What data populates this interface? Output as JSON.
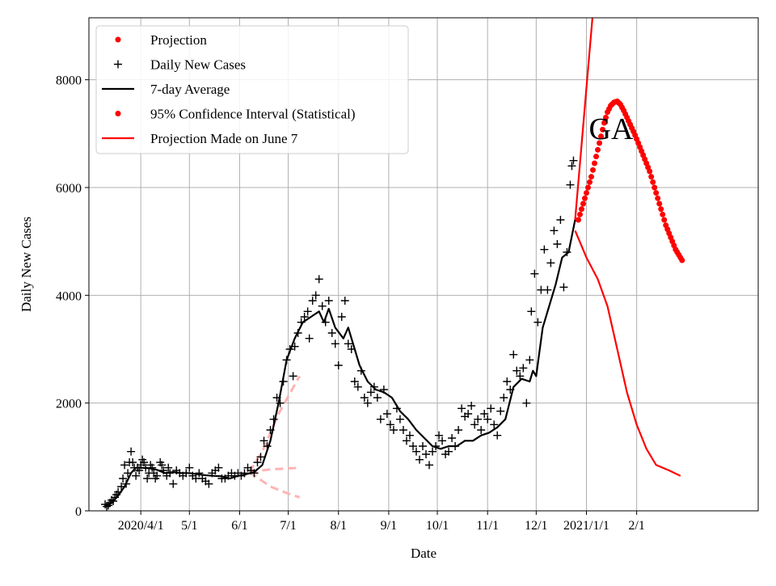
{
  "chart_data": {
    "type": "line",
    "title": "",
    "annotation": "GA",
    "xlabel": "Date",
    "ylabel": "Daily New Cases",
    "x_units": "days since 2020/4/1",
    "xlim": [
      -32,
      381
    ],
    "ylim": [
      0,
      9150
    ],
    "grid": true,
    "legend_placement": "top-left",
    "xticks": [
      {
        "day": 0,
        "label": "2020/4/1"
      },
      {
        "day": 30,
        "label": "5/1"
      },
      {
        "day": 61,
        "label": "6/1"
      },
      {
        "day": 91,
        "label": "7/1"
      },
      {
        "day": 122,
        "label": "8/1"
      },
      {
        "day": 153,
        "label": "9/1"
      },
      {
        "day": 183,
        "label": "10/1"
      },
      {
        "day": 214,
        "label": "11/1"
      },
      {
        "day": 244,
        "label": "12/1"
      },
      {
        "day": 275,
        "label": "2021/1/1"
      },
      {
        "day": 306,
        "label": "2/1"
      }
    ],
    "yticks": [
      {
        "value": 0,
        "label": "0"
      },
      {
        "value": 2000,
        "label": "2000"
      },
      {
        "value": 4000,
        "label": "4000"
      },
      {
        "value": 6000,
        "label": "6000"
      },
      {
        "value": 8000,
        "label": "8000"
      }
    ],
    "legend": [
      {
        "label": "Projection",
        "kind": "dot",
        "color": "#ff0000"
      },
      {
        "label": "Daily New Cases",
        "kind": "plus",
        "color": "#000000"
      },
      {
        "label": "7-day Average",
        "kind": "line",
        "color": "#000000"
      },
      {
        "label": "95% Confidence Interval (Statistical)",
        "kind": "dot",
        "color": "#ff0000"
      },
      {
        "label": "Projection Made on June 7",
        "kind": "line",
        "color": "#ff0000"
      }
    ],
    "series": {
      "daily_new_cases": [
        [
          -22,
          120
        ],
        [
          -21,
          80
        ],
        [
          -20,
          100
        ],
        [
          -19,
          150
        ],
        [
          -18,
          200
        ],
        [
          -17,
          180
        ],
        [
          -16,
          250
        ],
        [
          -15,
          300
        ],
        [
          -14,
          350
        ],
        [
          -12,
          450
        ],
        [
          -11,
          600
        ],
        [
          -10,
          850
        ],
        [
          -9,
          500
        ],
        [
          -8,
          700
        ],
        [
          -7,
          900
        ],
        [
          -6,
          1100
        ],
        [
          -5,
          900
        ],
        [
          -4,
          800
        ],
        [
          -3,
          650
        ],
        [
          -2,
          800
        ],
        [
          -1,
          750
        ],
        [
          0,
          850
        ],
        [
          1,
          950
        ],
        [
          2,
          900
        ],
        [
          3,
          800
        ],
        [
          4,
          600
        ],
        [
          5,
          700
        ],
        [
          6,
          850
        ],
        [
          7,
          800
        ],
        [
          8,
          700
        ],
        [
          9,
          600
        ],
        [
          10,
          650
        ],
        [
          12,
          900
        ],
        [
          13,
          850
        ],
        [
          14,
          750
        ],
        [
          16,
          650
        ],
        [
          17,
          800
        ],
        [
          18,
          700
        ],
        [
          20,
          500
        ],
        [
          22,
          750
        ],
        [
          24,
          700
        ],
        [
          26,
          650
        ],
        [
          28,
          700
        ],
        [
          30,
          800
        ],
        [
          32,
          650
        ],
        [
          34,
          600
        ],
        [
          36,
          700
        ],
        [
          38,
          600
        ],
        [
          40,
          550
        ],
        [
          42,
          500
        ],
        [
          44,
          700
        ],
        [
          46,
          750
        ],
        [
          48,
          800
        ],
        [
          50,
          600
        ],
        [
          52,
          600
        ],
        [
          54,
          650
        ],
        [
          56,
          700
        ],
        [
          58,
          650
        ],
        [
          60,
          700
        ],
        [
          62,
          650
        ],
        [
          64,
          700
        ],
        [
          66,
          800
        ],
        [
          68,
          750
        ],
        [
          70,
          700
        ],
        [
          72,
          900
        ],
        [
          74,
          1000
        ],
        [
          76,
          1300
        ],
        [
          78,
          1200
        ],
        [
          80,
          1500
        ],
        [
          82,
          1700
        ],
        [
          84,
          2100
        ],
        [
          86,
          2000
        ],
        [
          88,
          2400
        ],
        [
          90,
          2800
        ],
        [
          92,
          3000
        ],
        [
          94,
          2500
        ],
        [
          95,
          3050
        ],
        [
          97,
          3300
        ],
        [
          99,
          3500
        ],
        [
          101,
          3600
        ],
        [
          103,
          3700
        ],
        [
          104,
          3200
        ],
        [
          106,
          3900
        ],
        [
          108,
          4000
        ],
        [
          110,
          4300
        ],
        [
          112,
          3800
        ],
        [
          114,
          3500
        ],
        [
          116,
          3900
        ],
        [
          118,
          3300
        ],
        [
          120,
          3100
        ],
        [
          122,
          2700
        ],
        [
          124,
          3600
        ],
        [
          126,
          3900
        ],
        [
          128,
          3100
        ],
        [
          130,
          3000
        ],
        [
          132,
          2400
        ],
        [
          134,
          2300
        ],
        [
          136,
          2600
        ],
        [
          138,
          2100
        ],
        [
          140,
          2000
        ],
        [
          142,
          2200
        ],
        [
          144,
          2300
        ],
        [
          146,
          2100
        ],
        [
          148,
          1700
        ],
        [
          150,
          2250
        ],
        [
          152,
          1800
        ],
        [
          154,
          1600
        ],
        [
          156,
          1500
        ],
        [
          158,
          1900
        ],
        [
          160,
          1700
        ],
        [
          162,
          1500
        ],
        [
          164,
          1300
        ],
        [
          166,
          1400
        ],
        [
          168,
          1200
        ],
        [
          170,
          1100
        ],
        [
          172,
          950
        ],
        [
          174,
          1200
        ],
        [
          176,
          1050
        ],
        [
          178,
          850
        ],
        [
          180,
          1100
        ],
        [
          182,
          1200
        ],
        [
          184,
          1400
        ],
        [
          186,
          1300
        ],
        [
          188,
          1050
        ],
        [
          190,
          1100
        ],
        [
          192,
          1350
        ],
        [
          194,
          1200
        ],
        [
          196,
          1500
        ],
        [
          198,
          1900
        ],
        [
          200,
          1750
        ],
        [
          202,
          1800
        ],
        [
          204,
          1950
        ],
        [
          206,
          1600
        ],
        [
          208,
          1700
        ],
        [
          210,
          1500
        ],
        [
          212,
          1800
        ],
        [
          214,
          1700
        ],
        [
          216,
          1900
        ],
        [
          218,
          1600
        ],
        [
          220,
          1400
        ],
        [
          222,
          1850
        ],
        [
          224,
          2100
        ],
        [
          226,
          2400
        ],
        [
          228,
          2250
        ],
        [
          230,
          2900
        ],
        [
          232,
          2600
        ],
        [
          234,
          2500
        ],
        [
          236,
          2650
        ],
        [
          238,
          2000
        ],
        [
          240,
          2800
        ],
        [
          241,
          3700
        ],
        [
          243,
          4400
        ],
        [
          245,
          3500
        ],
        [
          247,
          4100
        ],
        [
          249,
          4850
        ],
        [
          251,
          4100
        ],
        [
          253,
          4600
        ],
        [
          255,
          5200
        ],
        [
          257,
          4950
        ],
        [
          259,
          5400
        ],
        [
          261,
          4150
        ],
        [
          263,
          4800
        ],
        [
          265,
          6050
        ],
        [
          266,
          6400
        ],
        [
          267,
          6500
        ]
      ],
      "seven_day_average": [
        [
          -22,
          80
        ],
        [
          -18,
          150
        ],
        [
          -14,
          280
        ],
        [
          -10,
          450
        ],
        [
          -6,
          700
        ],
        [
          -3,
          800
        ],
        [
          0,
          800
        ],
        [
          5,
          790
        ],
        [
          10,
          760
        ],
        [
          15,
          700
        ],
        [
          20,
          720
        ],
        [
          25,
          700
        ],
        [
          30,
          700
        ],
        [
          35,
          680
        ],
        [
          40,
          660
        ],
        [
          45,
          650
        ],
        [
          50,
          640
        ],
        [
          55,
          600
        ],
        [
          60,
          650
        ],
        [
          65,
          680
        ],
        [
          70,
          720
        ],
        [
          75,
          850
        ],
        [
          80,
          1300
        ],
        [
          85,
          2000
        ],
        [
          90,
          2800
        ],
        [
          95,
          3200
        ],
        [
          100,
          3500
        ],
        [
          105,
          3600
        ],
        [
          110,
          3700
        ],
        [
          113,
          3500
        ],
        [
          116,
          3750
        ],
        [
          120,
          3400
        ],
        [
          125,
          3200
        ],
        [
          128,
          3400
        ],
        [
          132,
          3000
        ],
        [
          135,
          2700
        ],
        [
          140,
          2400
        ],
        [
          145,
          2250
        ],
        [
          150,
          2200
        ],
        [
          155,
          2100
        ],
        [
          160,
          1850
        ],
        [
          165,
          1700
        ],
        [
          170,
          1500
        ],
        [
          175,
          1350
        ],
        [
          180,
          1200
        ],
        [
          185,
          1150
        ],
        [
          190,
          1200
        ],
        [
          195,
          1200
        ],
        [
          200,
          1300
        ],
        [
          205,
          1300
        ],
        [
          210,
          1400
        ],
        [
          215,
          1450
        ],
        [
          220,
          1550
        ],
        [
          225,
          1700
        ],
        [
          230,
          2300
        ],
        [
          235,
          2450
        ],
        [
          240,
          2400
        ],
        [
          242,
          2600
        ],
        [
          244,
          2500
        ],
        [
          248,
          3400
        ],
        [
          252,
          3800
        ],
        [
          256,
          4200
        ],
        [
          260,
          4700
        ],
        [
          264,
          4800
        ],
        [
          268,
          5400
        ]
      ],
      "projection_dots": {
        "start_day": 270,
        "step_days": 2,
        "values": [
          5400,
          5600,
          5800,
          6000,
          6200,
          6450,
          6700,
          6950,
          7200,
          7400,
          7520,
          7580,
          7600,
          7540,
          7430,
          7300,
          7170,
          7040,
          6900,
          6750,
          6600,
          6450,
          6300,
          6100,
          5900,
          5700,
          5500,
          5300,
          5150,
          5000,
          4850,
          4750,
          4650
        ]
      },
      "ci_upper": [
        [
          268,
          5400
        ],
        [
          272,
          6800
        ],
        [
          276,
          8200
        ],
        [
          280,
          9600
        ]
      ],
      "ci_lower": [
        [
          268,
          5200
        ],
        [
          275,
          4700
        ],
        [
          282,
          4300
        ],
        [
          288,
          3800
        ],
        [
          294,
          3000
        ],
        [
          300,
          2200
        ],
        [
          306,
          1600
        ],
        [
          312,
          1150
        ],
        [
          318,
          850
        ],
        [
          326,
          750
        ],
        [
          333,
          650
        ]
      ],
      "june7_projection_upper": [
        [
          67,
          720
        ],
        [
          75,
          1100
        ],
        [
          85,
          1800
        ],
        [
          98,
          2500
        ]
      ],
      "june7_projection_mid": [
        [
          67,
          720
        ],
        [
          80,
          770
        ],
        [
          98,
          800
        ]
      ],
      "june7_projection_lower": [
        [
          67,
          720
        ],
        [
          80,
          450
        ],
        [
          90,
          330
        ],
        [
          98,
          250
        ]
      ]
    }
  },
  "colors": {
    "projection": "#ff0000",
    "june7": "#ffb3b3",
    "grid": "#b0b0b0"
  }
}
